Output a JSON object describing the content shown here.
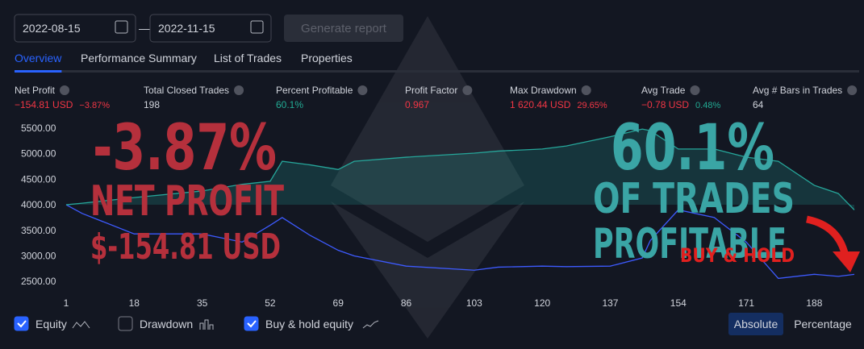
{
  "ui": {
    "date_from": "2022-08-15",
    "date_sep": "—",
    "date_to": "2022-11-15",
    "generate": "Generate report",
    "tabs": [
      {
        "label": "Overview",
        "active": true
      },
      {
        "label": "Performance Summary",
        "active": false
      },
      {
        "label": "List of Trades",
        "active": false
      },
      {
        "label": "Properties",
        "active": false
      }
    ],
    "metrics": [
      {
        "label": "Net Profit",
        "value": "−154.81 USD",
        "sub": "−3.87%",
        "color": "#f23645",
        "sub_color": "#f23645"
      },
      {
        "label": "Total Closed Trades",
        "value": "198",
        "color": "#d1d4dc"
      },
      {
        "label": "Percent Profitable",
        "value": "60.1%",
        "color": "#22ab94"
      },
      {
        "label": "Profit Factor",
        "value": "0.967",
        "color": "#f23645"
      },
      {
        "label": "Max Drawdown",
        "value": "1 620.44 USD",
        "sub": "29.65%",
        "color": "#f23645",
        "sub_color": "#f23645"
      },
      {
        "label": "Avg Trade",
        "value": "−0.78 USD",
        "sub": "0.48%",
        "color": "#f23645",
        "sub_color": "#22ab94"
      },
      {
        "label": "Avg # Bars in Trades",
        "value": "64",
        "color": "#d1d4dc"
      }
    ],
    "drawdown": {
      "label": "Drawdown",
      "checked": false
    },
    "modes": [
      {
        "label": "Absolute",
        "active": true
      },
      {
        "label": "Percentage",
        "active": false
      }
    ]
  },
  "chart_data": {
    "type": "line",
    "x": [
      1,
      5,
      18,
      35,
      45,
      52,
      55,
      62,
      69,
      73,
      86,
      103,
      109,
      120,
      126,
      137,
      145,
      147,
      154,
      163,
      171,
      179,
      188,
      194,
      198
    ],
    "series": [
      {
        "name": "Equity",
        "color": "#26a69a",
        "checked": true,
        "values": [
          4000,
          4030,
          4140,
          4270,
          4400,
          4460,
          4850,
          4780,
          4690,
          4850,
          4930,
          5010,
          5050,
          5090,
          5150,
          5330,
          5480,
          5450,
          5090,
          5090,
          4930,
          4850,
          4380,
          4220,
          3900
        ]
      },
      {
        "name": "Buy & hold equity",
        "color": "#3d5afe",
        "checked": true,
        "values": [
          4000,
          3830,
          3430,
          3430,
          3270,
          3600,
          3750,
          3400,
          3110,
          3000,
          2800,
          2720,
          2780,
          2800,
          2790,
          2800,
          2960,
          3300,
          3900,
          3750,
          3270,
          2560,
          2640,
          2600,
          2640
        ]
      }
    ],
    "xlim": [
      1,
      198
    ],
    "ylim": [
      2330,
      5640
    ],
    "xticks": [
      1,
      18,
      35,
      52,
      69,
      86,
      103,
      120,
      137,
      154,
      171,
      188
    ],
    "yticks": [
      {
        "value": 2500,
        "label": "2500.00"
      },
      {
        "value": 3000,
        "label": "3000.00"
      },
      {
        "value": 3500,
        "label": "3500.00"
      },
      {
        "value": 4000,
        "label": "4000.00"
      },
      {
        "value": 4500,
        "label": "4500.00"
      },
      {
        "value": 5000,
        "label": "5000.00"
      },
      {
        "value": 5500,
        "label": "5500.00"
      }
    ],
    "annotations": [
      "-3.87%",
      "NET PROFIT",
      "$-154.81 USD",
      "60.1%",
      "OF TRADES",
      "PROFITABLE",
      "BUY & HOLD"
    ]
  }
}
